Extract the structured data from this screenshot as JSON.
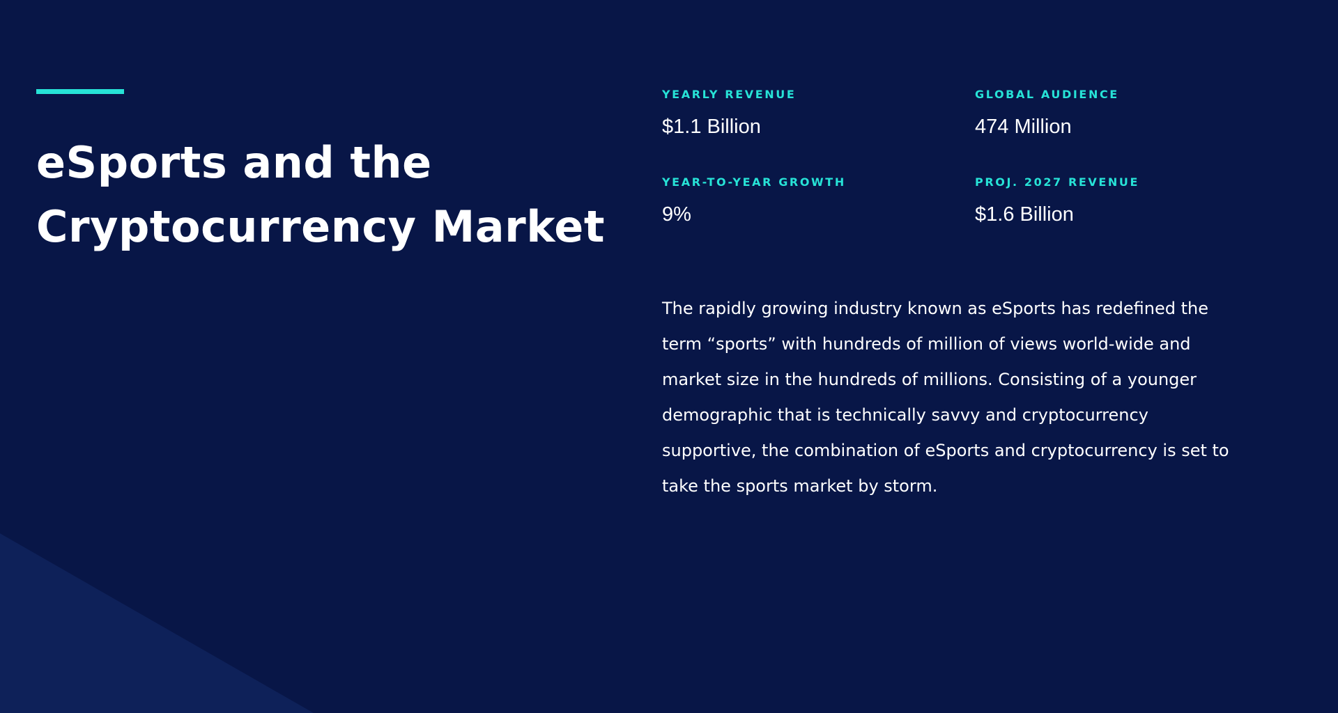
{
  "colors": {
    "background": "#081647",
    "accent": "#27e3d7",
    "shape": "#0e2159",
    "text": "#ffffff"
  },
  "title": {
    "line1": "eSports and the",
    "line2": "Cryptocurrency Market"
  },
  "stats": [
    {
      "label": "YEARLY REVENUE",
      "value": "$1.1 Billion"
    },
    {
      "label": "GLOBAL AUDIENCE",
      "value": "474 Million"
    },
    {
      "label": "YEAR-TO-YEAR GROWTH",
      "value": "9%"
    },
    {
      "label": "PROJ. 2027 REVENUE",
      "value": "$1.6 Billion"
    }
  ],
  "description": "The rapidly growing industry known as eSports has redefined the term “sports” with hundreds of million of views world-wide and market size in the hundreds of millions. Consisting of a younger demographic that is technically savvy and cryptocurrency supportive, the combination of eSports and cryptocurrency is set to take the sports market by storm."
}
